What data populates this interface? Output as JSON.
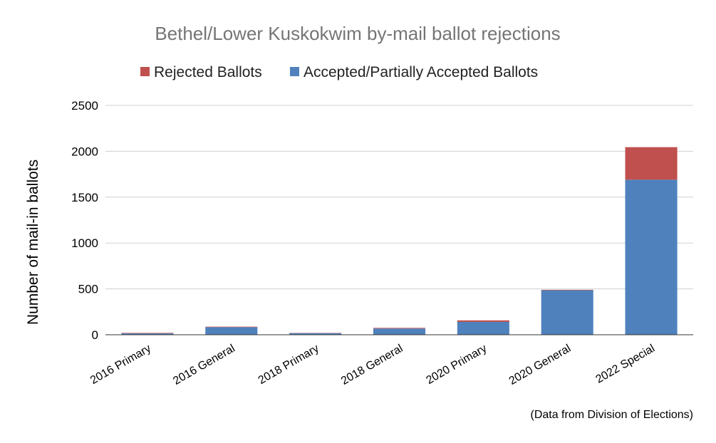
{
  "chart_data": {
    "type": "bar",
    "stacked": true,
    "title": "Bethel/Lower Kuskokwim by-mail ballot rejections",
    "xlabel": "",
    "ylabel": "Number of mail-in ballots",
    "categories": [
      "2016 Primary",
      "2016 General",
      "2018 Primary",
      "2018 General",
      "2020 Primary",
      "2020 General",
      "2022 Special"
    ],
    "series": [
      {
        "name": "Accepted/Partially Accepted Ballots",
        "color": "#4f81bd",
        "values": [
          15,
          83,
          17,
          68,
          140,
          485,
          1690
        ]
      },
      {
        "name": "Rejected Ballots",
        "color": "#c0504d",
        "values": [
          5,
          5,
          3,
          7,
          17,
          5,
          355
        ]
      }
    ],
    "legend_order": [
      "Rejected Ballots",
      "Accepted/Partially Accepted Ballots"
    ],
    "legend_position": "top",
    "ylim": [
      0,
      2500
    ],
    "yticks": [
      0,
      500,
      1000,
      1500,
      2000,
      2500
    ],
    "grid": true,
    "annotation": "(Data from Division of Elections)"
  }
}
